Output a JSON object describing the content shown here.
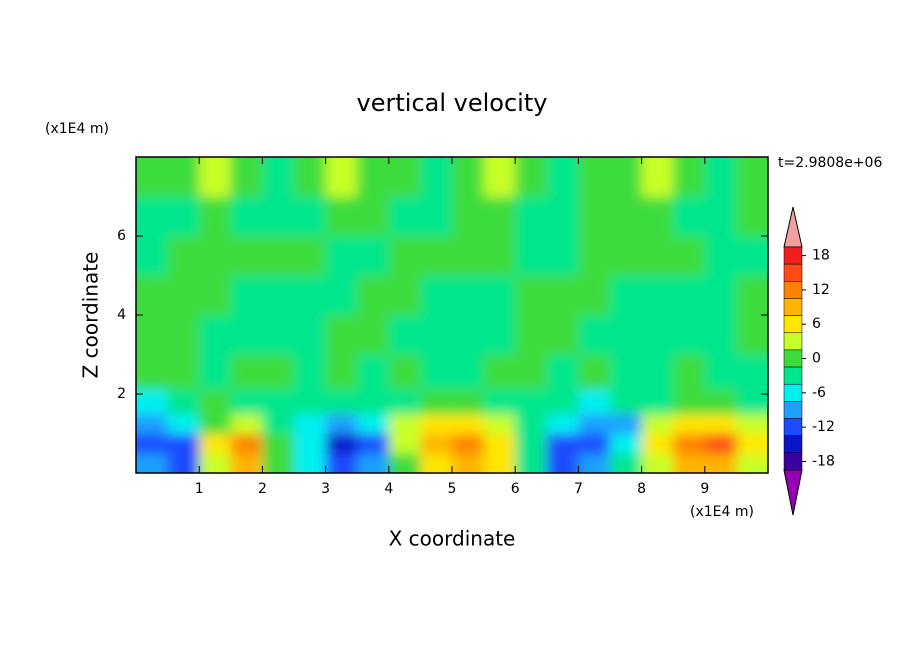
{
  "chart_data": {
    "type": "contour",
    "title": "vertical velocity",
    "time_label": "t=2.9808e+06",
    "x_label": "X coordinate",
    "y_label": "Z coordinate",
    "x_unit": "(x1E4 m)",
    "y_unit": "(x1E4 m)",
    "xlim": [
      0,
      10
    ],
    "ylim": [
      0,
      8
    ],
    "xticks": [
      1,
      2,
      3,
      4,
      5,
      6,
      7,
      8,
      9
    ],
    "yticks": [
      2,
      4,
      6
    ],
    "x": [
      0.25,
      0.75,
      1.25,
      1.75,
      2.25,
      2.75,
      3.25,
      3.75,
      4.25,
      4.75,
      5.25,
      5.75,
      6.25,
      6.75,
      7.25,
      7.75,
      8.25,
      8.75,
      9.25,
      9.75
    ],
    "z": [
      0.25,
      0.75,
      1.25,
      1.75,
      2.5,
      3.5,
      4.5,
      5.5,
      6.5,
      7.5
    ],
    "values": [
      [
        -9,
        -12,
        3,
        9,
        0,
        -6,
        -12,
        -9,
        0,
        6,
        9,
        6,
        -3,
        -12,
        -9,
        -3,
        3,
        9,
        9,
        3
      ],
      [
        -12,
        -12,
        6,
        12,
        0,
        -6,
        -15,
        -12,
        3,
        9,
        12,
        6,
        -3,
        -12,
        -12,
        -6,
        6,
        12,
        15,
        6
      ],
      [
        -9,
        -6,
        0,
        3,
        -3,
        -6,
        -9,
        -6,
        3,
        6,
        6,
        3,
        -3,
        -6,
        -9,
        -9,
        3,
        6,
        6,
        3
      ],
      [
        -6,
        -3,
        0,
        -3,
        -3,
        -3,
        -3,
        -3,
        -3,
        0,
        0,
        -3,
        -3,
        -3,
        -6,
        -3,
        -3,
        0,
        0,
        -3
      ],
      [
        0,
        0,
        -3,
        0,
        0,
        -3,
        0,
        -3,
        0,
        -3,
        -3,
        0,
        0,
        -3,
        0,
        -3,
        -3,
        0,
        -3,
        -3
      ],
      [
        0,
        0,
        -3,
        -3,
        -3,
        -3,
        0,
        0,
        -3,
        -3,
        -3,
        -3,
        0,
        0,
        -3,
        -3,
        -3,
        -3,
        -3,
        0
      ],
      [
        0,
        0,
        0,
        -3,
        -3,
        -3,
        -3,
        0,
        0,
        -3,
        -3,
        -3,
        0,
        0,
        0,
        -3,
        -3,
        -3,
        -3,
        0
      ],
      [
        -3,
        0,
        0,
        0,
        0,
        0,
        -3,
        -3,
        0,
        0,
        0,
        0,
        -3,
        -3,
        0,
        0,
        0,
        0,
        -3,
        -3
      ],
      [
        -3,
        -3,
        0,
        -3,
        -3,
        -3,
        0,
        0,
        -3,
        -3,
        0,
        0,
        -3,
        -3,
        0,
        0,
        0,
        -3,
        -3,
        0
      ],
      [
        0,
        0,
        3,
        0,
        -3,
        0,
        3,
        0,
        0,
        -3,
        0,
        3,
        0,
        -3,
        0,
        0,
        3,
        0,
        -3,
        0
      ]
    ],
    "colorbar": {
      "levels": [
        18,
        15,
        12,
        9,
        6,
        3,
        0,
        -3,
        -6,
        -9,
        -12,
        -15,
        -18
      ],
      "colors": [
        "#f01e1e",
        "#ff4a14",
        "#ff8200",
        "#ffb400",
        "#ffe600",
        "#c8ff28",
        "#3cdc3c",
        "#00e68c",
        "#00f0f0",
        "#1ea0ff",
        "#1e4bff",
        "#0a14c8",
        "#3c00a0"
      ],
      "over_color": "#f0a0a0",
      "under_color": "#9600b4",
      "ticks": [
        18,
        12,
        6,
        0,
        -6,
        -12,
        -18
      ]
    }
  }
}
